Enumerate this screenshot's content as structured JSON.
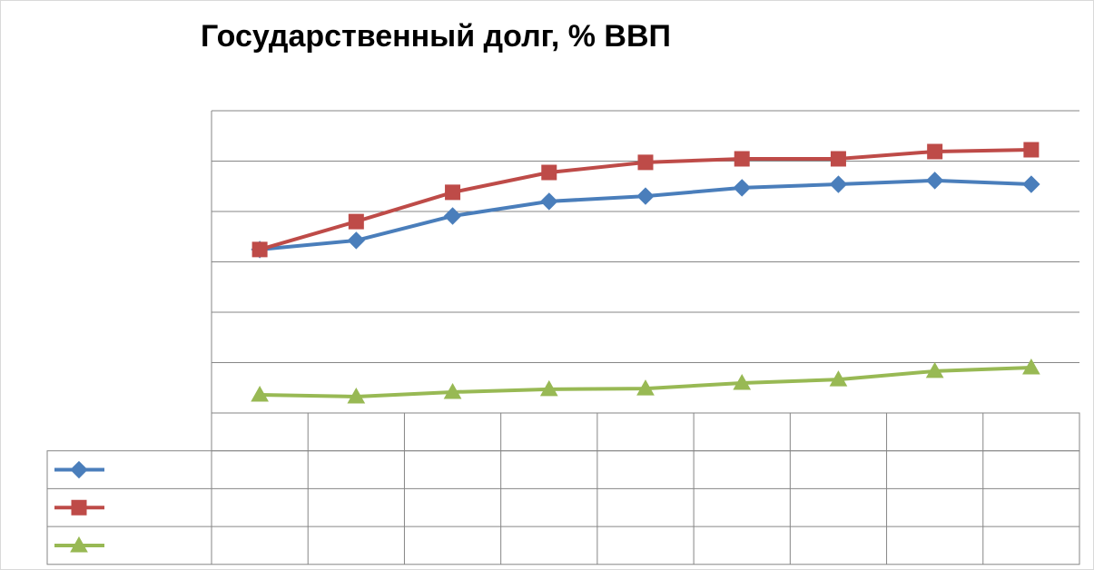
{
  "chart_data": {
    "type": "line",
    "title": "Государственный долг, % ВВП",
    "categories": [
      null,
      null,
      null,
      null,
      null,
      null,
      null,
      null,
      null
    ],
    "series": [
      {
        "color": "#4a7ebb",
        "marker": "diamond",
        "values": [
          64.9,
          68.5,
          78.2,
          84,
          86.1,
          89.4,
          90.8,
          92.3,
          90.8
        ]
      },
      {
        "color": "#be4b48",
        "marker": "square",
        "values": [
          64.9,
          76,
          87.6,
          95.5,
          99.5,
          100.9,
          100.9,
          103.8,
          104.5
        ]
      },
      {
        "color": "#98b954",
        "marker": "triangle",
        "values": [
          7.2,
          6.5,
          8.3,
          9.4,
          9.7,
          11.9,
          13.3,
          16.6,
          18
        ]
      }
    ],
    "ylim": [
      0,
      120
    ],
    "yticks": [
      0,
      20,
      40,
      60,
      80,
      100,
      120
    ],
    "grid": true,
    "data_table": true
  }
}
